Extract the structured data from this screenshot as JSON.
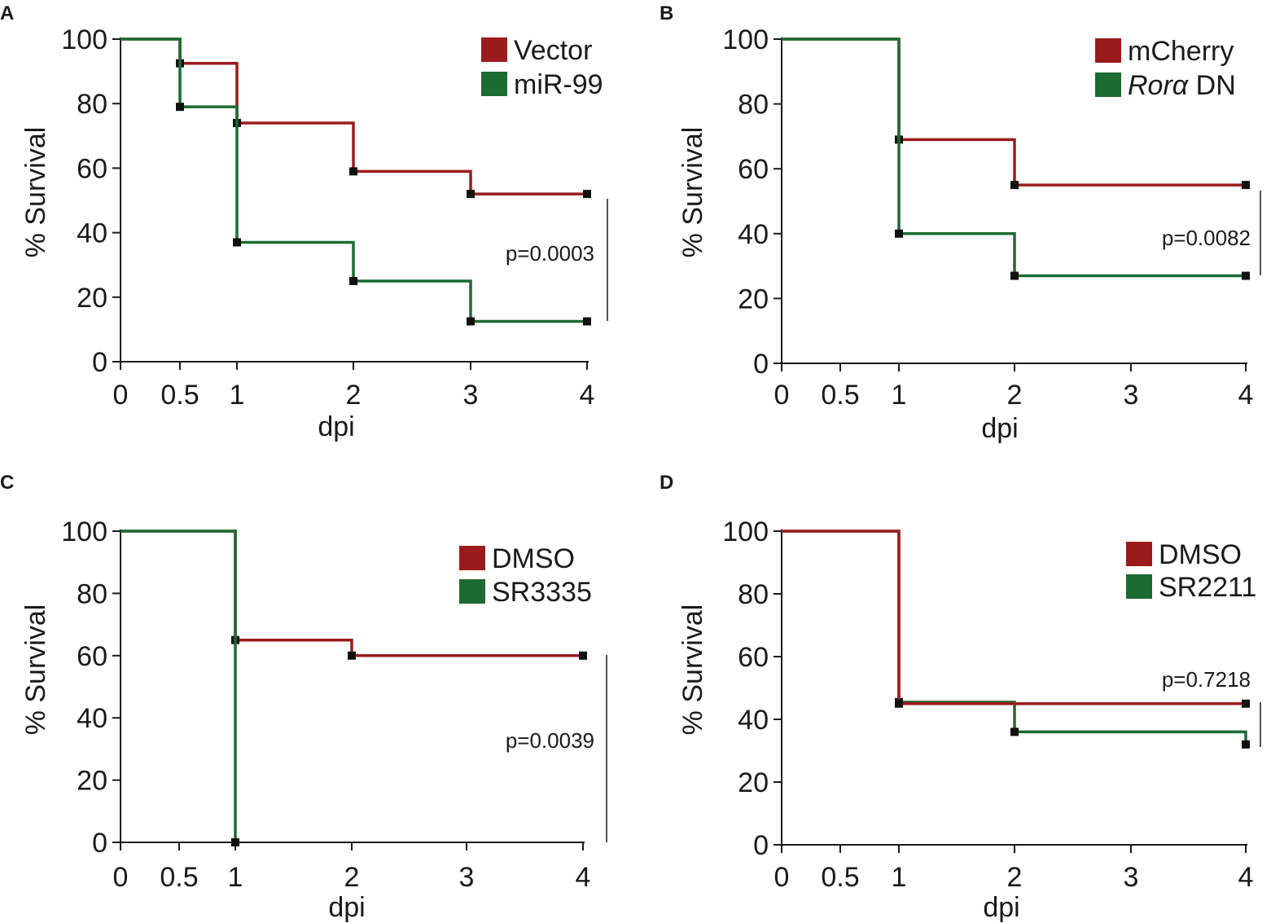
{
  "colors": {
    "red": "#9b1b1d",
    "green": "#1d6a33",
    "axis": "#1a1a1a",
    "marker": "#111111"
  },
  "chart_data": [
    {
      "panel": "A",
      "type": "line",
      "xlabel": "dpi",
      "ylabel": "% Survival",
      "xticks": [
        "0",
        "0.5",
        "1",
        "2",
        "3",
        "4"
      ],
      "yticks": [
        "0",
        "20",
        "40",
        "60",
        "80",
        "100"
      ],
      "ylim": [
        0,
        100
      ],
      "series": [
        {
          "name": "Vector",
          "color": "red",
          "x": [
            0,
            0.5,
            1,
            2,
            3,
            4
          ],
          "y": [
            100,
            92.5,
            74,
            59,
            52,
            52
          ]
        },
        {
          "name": "miR-99",
          "color": "green",
          "x": [
            0,
            0.5,
            1,
            2,
            3,
            4
          ],
          "y": [
            100,
            79,
            37,
            25,
            12.5,
            12.5
          ]
        }
      ],
      "legend": [
        {
          "label": "Vector",
          "label_rest": "",
          "italic": false,
          "color": "red"
        },
        {
          "label": "miR-99",
          "label_rest": "",
          "italic": false,
          "color": "green"
        }
      ],
      "pvalue": "p=0.0003"
    },
    {
      "panel": "B",
      "type": "line",
      "xlabel": "dpi",
      "ylabel": "% Survival",
      "xticks": [
        "0",
        "0.5",
        "1",
        "2",
        "3",
        "4"
      ],
      "yticks": [
        "0",
        "20",
        "40",
        "60",
        "80",
        "100"
      ],
      "ylim": [
        0,
        100
      ],
      "series": [
        {
          "name": "mCherry",
          "color": "red",
          "x": [
            0,
            1,
            2,
            4
          ],
          "y": [
            100,
            69,
            55,
            55
          ]
        },
        {
          "name": "Rorα DN",
          "color": "green",
          "x": [
            0,
            1,
            2,
            4
          ],
          "y": [
            100,
            40,
            27,
            27
          ]
        }
      ],
      "legend": [
        {
          "label": "mCherry",
          "label_rest": "",
          "italic": false,
          "color": "red"
        },
        {
          "label": "Rorα",
          "label_rest": " DN",
          "italic": true,
          "color": "green"
        }
      ],
      "pvalue": "p=0.0082"
    },
    {
      "panel": "C",
      "type": "line",
      "xlabel": "dpi",
      "ylabel": "% Survival",
      "xticks": [
        "0",
        "0.5",
        "1",
        "2",
        "3",
        "4"
      ],
      "yticks": [
        "0",
        "20",
        "40",
        "60",
        "80",
        "100"
      ],
      "ylim": [
        0,
        100
      ],
      "series": [
        {
          "name": "DMSO",
          "color": "red",
          "x": [
            0,
            1,
            2,
            4
          ],
          "y": [
            100,
            65,
            60,
            60
          ]
        },
        {
          "name": "SR3335",
          "color": "green",
          "x": [
            0,
            1
          ],
          "y": [
            100,
            0
          ]
        }
      ],
      "legend": [
        {
          "label": "DMSO",
          "label_rest": "",
          "italic": false,
          "color": "red"
        },
        {
          "label": "SR3335",
          "label_rest": "",
          "italic": false,
          "color": "green"
        }
      ],
      "pvalue": "p=0.0039"
    },
    {
      "panel": "D",
      "type": "line",
      "xlabel": "dpi",
      "ylabel": "% Survival",
      "xticks": [
        "0",
        "0.5",
        "1",
        "2",
        "3",
        "4"
      ],
      "yticks": [
        "0",
        "20",
        "40",
        "60",
        "80",
        "100"
      ],
      "ylim": [
        0,
        100
      ],
      "series": [
        {
          "name": "SR2211",
          "color": "green",
          "x": [
            0,
            1,
            2,
            4
          ],
          "y": [
            100,
            45.5,
            36,
            32
          ]
        },
        {
          "name": "DMSO",
          "color": "red",
          "x": [
            0,
            1,
            4
          ],
          "y": [
            100,
            45,
            45
          ]
        }
      ],
      "legend": [
        {
          "label": "DMSO",
          "label_rest": "",
          "italic": false,
          "color": "red"
        },
        {
          "label": "SR2211",
          "label_rest": "",
          "italic": false,
          "color": "green"
        }
      ],
      "pvalue": "p=0.7218"
    }
  ]
}
